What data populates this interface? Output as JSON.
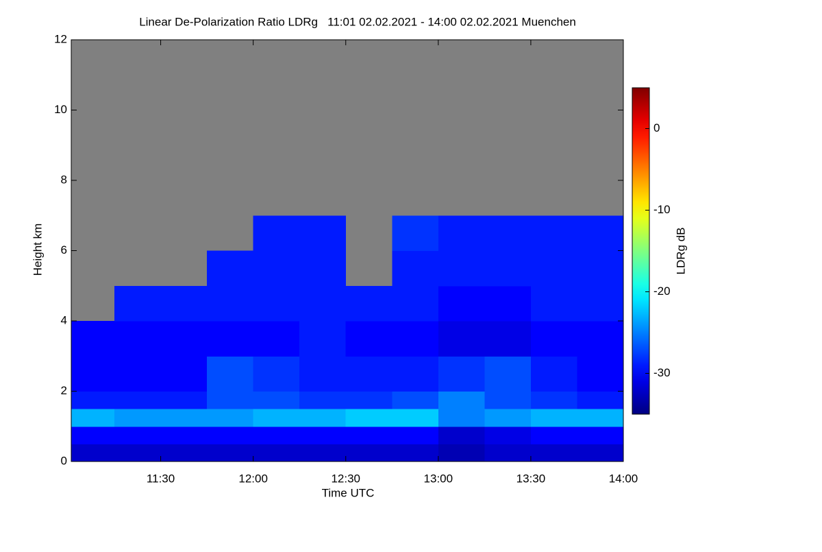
{
  "chart_data": {
    "type": "heatmap",
    "title": "Linear De-Polarization Ratio LDRg   11:01 02.02.2021 - 14:00 02.02.2021 Muenchen",
    "x_label": "Time UTC",
    "y_label": "Height km",
    "colorbar_label": "LDRg dB",
    "colormap": "jet",
    "missing_color": "#808080",
    "xlim": [
      11.0167,
      14.0
    ],
    "ylim": [
      0,
      12
    ],
    "zlim": [
      -35,
      5
    ],
    "xticks": [
      {
        "value": 11.5,
        "label": "11:30"
      },
      {
        "value": 12.0,
        "label": "12:00"
      },
      {
        "value": 12.5,
        "label": "12:30"
      },
      {
        "value": 13.0,
        "label": "13:00"
      },
      {
        "value": 13.5,
        "label": "13:30"
      },
      {
        "value": 14.0,
        "label": "14:00"
      }
    ],
    "yticks": [
      0,
      2,
      4,
      6,
      8,
      10,
      12
    ],
    "zticks": [
      0,
      -10,
      -20,
      -30
    ],
    "x_bins": [
      11.0167,
      11.25,
      11.5,
      11.75,
      12.0,
      12.25,
      12.5,
      12.75,
      13.0,
      13.25,
      13.5,
      13.75,
      14.0
    ],
    "y_bins": [
      0,
      0.5,
      1,
      1.5,
      2,
      3,
      4,
      5,
      6,
      7,
      8,
      12
    ],
    "z": [
      [
        -32,
        -32,
        -32,
        -32,
        -32,
        -32,
        -32,
        -32,
        -33,
        -32,
        -32,
        -32
      ],
      [
        -30,
        -30,
        -30,
        -30,
        -30,
        -30,
        -30,
        -30,
        -32,
        -31,
        -30,
        -30
      ],
      [
        -23,
        -24,
        -24,
        -24,
        -23,
        -23,
        -22,
        -22,
        -25,
        -24,
        -23,
        -23
      ],
      [
        -29,
        -29,
        -29,
        -27,
        -27,
        -28,
        -28,
        -27,
        -25,
        -27,
        -28,
        -29
      ],
      [
        -30,
        -30,
        -30,
        -27,
        -28,
        -29,
        -29,
        -29,
        -28,
        -27,
        -29,
        -30
      ],
      [
        -30,
        -30,
        -30,
        -30,
        -30,
        -29,
        -30,
        -30,
        -31,
        -31,
        -30,
        -30
      ],
      [
        null,
        -29,
        -29,
        -29,
        -29,
        -29,
        -29,
        -29,
        -30,
        -30,
        -29,
        -29
      ],
      [
        null,
        null,
        null,
        -29,
        -29,
        -29,
        null,
        -29,
        -29,
        -29,
        -29,
        -29
      ],
      [
        null,
        null,
        null,
        null,
        -29,
        -29,
        null,
        -28,
        -29,
        -29,
        -29,
        -29
      ],
      [
        null,
        null,
        null,
        null,
        null,
        null,
        null,
        null,
        null,
        null,
        null,
        null
      ],
      [
        null,
        null,
        null,
        null,
        null,
        null,
        null,
        null,
        null,
        null,
        null,
        null
      ]
    ]
  }
}
